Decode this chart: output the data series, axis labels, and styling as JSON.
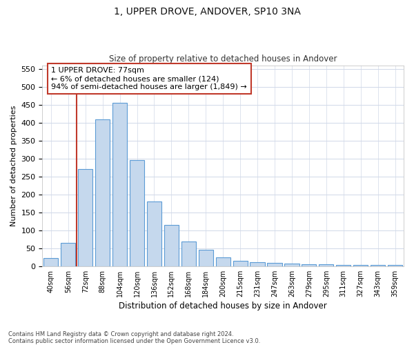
{
  "title": "1, UPPER DROVE, ANDOVER, SP10 3NA",
  "subtitle": "Size of property relative to detached houses in Andover",
  "xlabel": "Distribution of detached houses by size in Andover",
  "ylabel": "Number of detached properties",
  "bar_color": "#c5d8ed",
  "bar_edge_color": "#5b9bd5",
  "background_color": "#ffffff",
  "grid_color": "#d0d8e8",
  "categories": [
    "40sqm",
    "56sqm",
    "72sqm",
    "88sqm",
    "104sqm",
    "120sqm",
    "136sqm",
    "152sqm",
    "168sqm",
    "184sqm",
    "200sqm",
    "215sqm",
    "231sqm",
    "247sqm",
    "263sqm",
    "279sqm",
    "295sqm",
    "311sqm",
    "327sqm",
    "343sqm",
    "359sqm"
  ],
  "values": [
    22,
    65,
    270,
    410,
    455,
    295,
    180,
    115,
    68,
    45,
    25,
    15,
    12,
    9,
    7,
    6,
    5,
    4,
    3,
    3,
    4
  ],
  "ylim": [
    0,
    560
  ],
  "yticks": [
    0,
    50,
    100,
    150,
    200,
    250,
    300,
    350,
    400,
    450,
    500,
    550
  ],
  "vline_x_index": 1.5,
  "vline_color": "#c0392b",
  "annotation_text": "1 UPPER DROVE: 77sqm\n← 6% of detached houses are smaller (124)\n94% of semi-detached houses are larger (1,849) →",
  "annotation_box_color": "#ffffff",
  "annotation_box_edge": "#c0392b",
  "footer": "Contains HM Land Registry data © Crown copyright and database right 2024.\nContains public sector information licensed under the Open Government Licence v3.0."
}
